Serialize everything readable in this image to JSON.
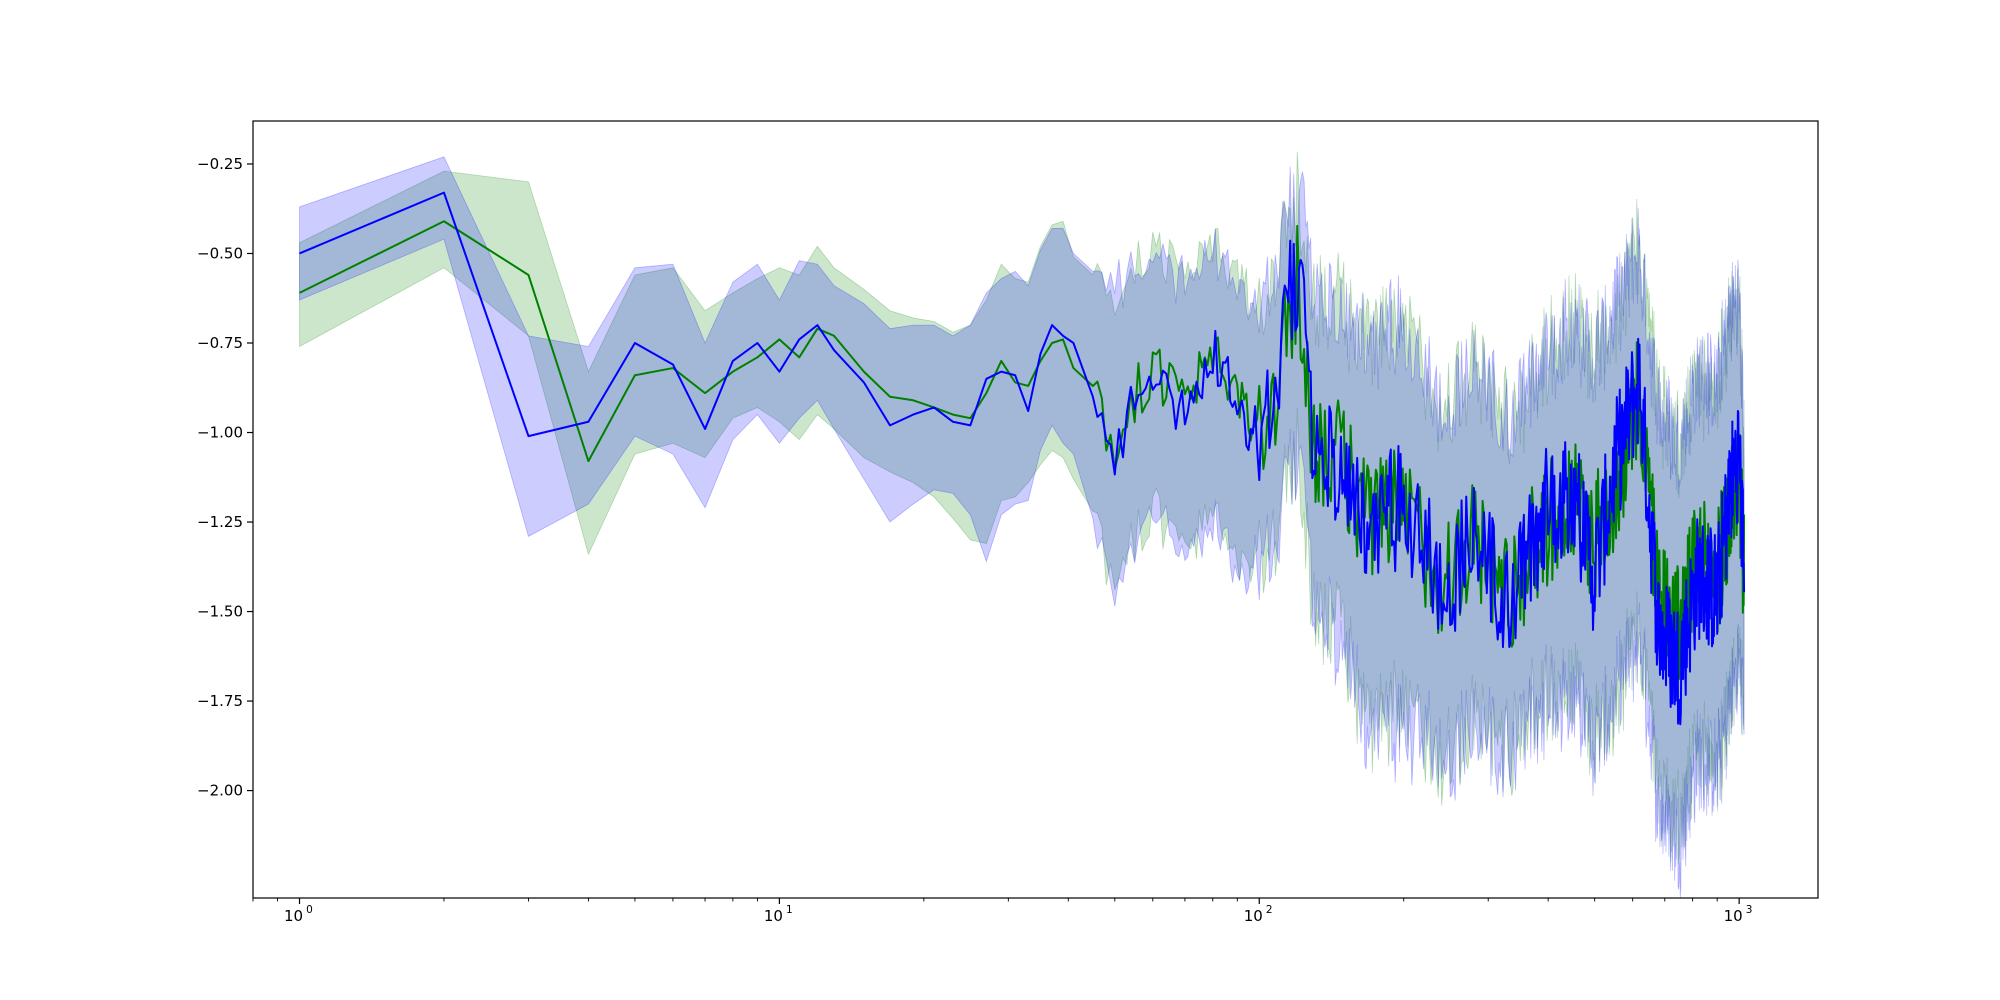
{
  "chart_data": {
    "type": "line",
    "title": "",
    "xlabel": "",
    "ylabel": "",
    "x_scale": "log",
    "xlim": [
      0.8,
      1460
    ],
    "ylim": [
      -2.3,
      -0.13
    ],
    "x_ticks": [
      {
        "value": 1,
        "label": "10",
        "exp": "0"
      },
      {
        "value": 10,
        "label": "10",
        "exp": "1"
      },
      {
        "value": 100,
        "label": "10",
        "exp": "2"
      },
      {
        "value": 1000,
        "label": "10",
        "exp": "3"
      }
    ],
    "y_ticks": [
      {
        "value": -0.25,
        "label": "−0.25"
      },
      {
        "value": -0.5,
        "label": "−0.50"
      },
      {
        "value": -0.75,
        "label": "−0.75"
      },
      {
        "value": -1.0,
        "label": "−1.00"
      },
      {
        "value": -1.25,
        "label": "−1.25"
      },
      {
        "value": -1.5,
        "label": "−1.50"
      },
      {
        "value": -1.75,
        "label": "−1.75"
      },
      {
        "value": -2.0,
        "label": "−2.00"
      }
    ],
    "grid": false,
    "legend": "none",
    "series": [
      {
        "color": "#008000",
        "band_color": "#008000",
        "x": [
          1,
          2,
          3,
          4,
          5,
          6,
          7,
          8,
          9,
          10,
          11,
          12,
          13,
          15,
          17,
          19,
          21,
          23,
          25,
          27,
          29,
          31,
          33,
          35,
          37,
          39,
          41,
          45,
          50,
          55,
          60,
          70,
          80,
          90,
          100,
          110,
          120,
          130,
          150,
          170,
          200,
          240,
          280,
          330,
          400,
          450,
          500,
          550,
          620,
          680,
          750,
          820,
          900,
          960,
          1000,
          1024
        ],
        "mean": [
          -0.61,
          -0.41,
          -0.56,
          -1.08,
          -0.84,
          -0.82,
          -0.89,
          -0.83,
          -0.79,
          -0.74,
          -0.79,
          -0.71,
          -0.73,
          -0.83,
          -0.9,
          -0.91,
          -0.93,
          -0.95,
          -0.96,
          -0.89,
          -0.8,
          -0.86,
          -0.87,
          -0.8,
          -0.75,
          -0.74,
          -0.82,
          -0.87,
          -1.05,
          -0.9,
          -0.82,
          -0.92,
          -0.79,
          -0.9,
          -1.0,
          -0.85,
          -0.6,
          -1.02,
          -1.1,
          -1.25,
          -1.22,
          -1.4,
          -1.3,
          -1.45,
          -1.25,
          -1.2,
          -1.3,
          -1.15,
          -0.9,
          -1.45,
          -1.55,
          -1.35,
          -1.4,
          -1.2,
          -1.1,
          -1.4
        ],
        "lower": [
          -0.76,
          -0.54,
          -0.73,
          -1.34,
          -1.06,
          -1.03,
          -1.07,
          -0.96,
          -0.93,
          -0.97,
          -1.02,
          -0.95,
          -0.99,
          -1.07,
          -1.11,
          -1.14,
          -1.18,
          -1.24,
          -1.3,
          -1.31,
          -1.19,
          -1.18,
          -1.14,
          -1.09,
          -1.05,
          -1.07,
          -1.13,
          -1.22,
          -1.42,
          -1.28,
          -1.2,
          -1.33,
          -1.22,
          -1.37,
          -1.36,
          -1.24,
          -1.06,
          -1.47,
          -1.58,
          -1.84,
          -1.78,
          -1.89,
          -1.81,
          -1.87,
          -1.72,
          -1.7,
          -1.85,
          -1.73,
          -1.55,
          -1.98,
          -2.1,
          -1.9,
          -1.92,
          -1.74,
          -1.62,
          -1.75
        ],
        "upper": [
          -0.47,
          -0.27,
          -0.3,
          -0.83,
          -0.56,
          -0.54,
          -0.66,
          -0.61,
          -0.57,
          -0.54,
          -0.56,
          -0.48,
          -0.54,
          -0.6,
          -0.66,
          -0.68,
          -0.69,
          -0.72,
          -0.7,
          -0.63,
          -0.53,
          -0.57,
          -0.58,
          -0.48,
          -0.42,
          -0.41,
          -0.51,
          -0.56,
          -0.61,
          -0.55,
          -0.49,
          -0.59,
          -0.48,
          -0.57,
          -0.66,
          -0.51,
          -0.37,
          -0.6,
          -0.67,
          -0.75,
          -0.71,
          -0.93,
          -0.8,
          -0.97,
          -0.78,
          -0.7,
          -0.79,
          -0.66,
          -0.49,
          -0.92,
          -1.05,
          -0.85,
          -0.88,
          -0.67,
          -0.62,
          -1.05
        ]
      },
      {
        "color": "#0000ff",
        "band_color": "#0000ff",
        "x": [
          1,
          2,
          3,
          4,
          5,
          6,
          7,
          8,
          9,
          10,
          11,
          12,
          13,
          15,
          17,
          19,
          21,
          23,
          25,
          27,
          29,
          31,
          33,
          35,
          37,
          39,
          41,
          45,
          50,
          55,
          60,
          70,
          80,
          90,
          100,
          110,
          120,
          130,
          150,
          170,
          200,
          240,
          280,
          330,
          400,
          450,
          500,
          550,
          620,
          680,
          750,
          820,
          900,
          960,
          1000,
          1024
        ],
        "mean": [
          -0.5,
          -0.33,
          -1.01,
          -0.97,
          -0.75,
          -0.81,
          -0.99,
          -0.8,
          -0.75,
          -0.83,
          -0.74,
          -0.7,
          -0.77,
          -0.86,
          -0.98,
          -0.95,
          -0.93,
          -0.97,
          -0.98,
          -0.85,
          -0.83,
          -0.84,
          -0.94,
          -0.78,
          -0.7,
          -0.73,
          -0.75,
          -0.9,
          -1.1,
          -0.88,
          -0.85,
          -0.95,
          -0.77,
          -0.92,
          -1.02,
          -0.8,
          -0.54,
          -1.05,
          -1.13,
          -1.3,
          -1.18,
          -1.45,
          -1.28,
          -1.5,
          -1.2,
          -1.15,
          -1.4,
          -1.1,
          -0.85,
          -1.55,
          -1.65,
          -1.4,
          -1.45,
          -1.15,
          -1.05,
          -1.4
        ],
        "lower": [
          -0.63,
          -0.46,
          -1.29,
          -1.2,
          -1.01,
          -1.06,
          -1.21,
          -1.02,
          -0.95,
          -1.03,
          -0.96,
          -0.91,
          -0.99,
          -1.13,
          -1.25,
          -1.2,
          -1.16,
          -1.17,
          -1.23,
          -1.36,
          -1.23,
          -1.2,
          -1.19,
          -1.05,
          -0.98,
          -1.03,
          -1.06,
          -1.24,
          -1.47,
          -1.3,
          -1.22,
          -1.35,
          -1.23,
          -1.4,
          -1.37,
          -1.25,
          -1.03,
          -1.49,
          -1.6,
          -1.86,
          -1.8,
          -1.91,
          -1.82,
          -1.9,
          -1.75,
          -1.72,
          -1.88,
          -1.75,
          -1.57,
          -2.05,
          -2.14,
          -1.92,
          -1.95,
          -1.76,
          -1.64,
          -1.78
        ],
        "upper": [
          -0.37,
          -0.23,
          -0.73,
          -0.76,
          -0.54,
          -0.53,
          -0.75,
          -0.58,
          -0.53,
          -0.63,
          -0.52,
          -0.53,
          -0.59,
          -0.64,
          -0.71,
          -0.7,
          -0.7,
          -0.73,
          -0.7,
          -0.61,
          -0.57,
          -0.55,
          -0.59,
          -0.49,
          -0.43,
          -0.43,
          -0.5,
          -0.55,
          -0.6,
          -0.54,
          -0.5,
          -0.58,
          -0.47,
          -0.58,
          -0.64,
          -0.5,
          -0.36,
          -0.6,
          -0.69,
          -0.77,
          -0.7,
          -0.94,
          -0.81,
          -0.99,
          -0.76,
          -0.68,
          -0.8,
          -0.64,
          -0.49,
          -0.94,
          -1.04,
          -0.84,
          -0.86,
          -0.66,
          -0.6,
          -1.06
        ]
      }
    ]
  }
}
